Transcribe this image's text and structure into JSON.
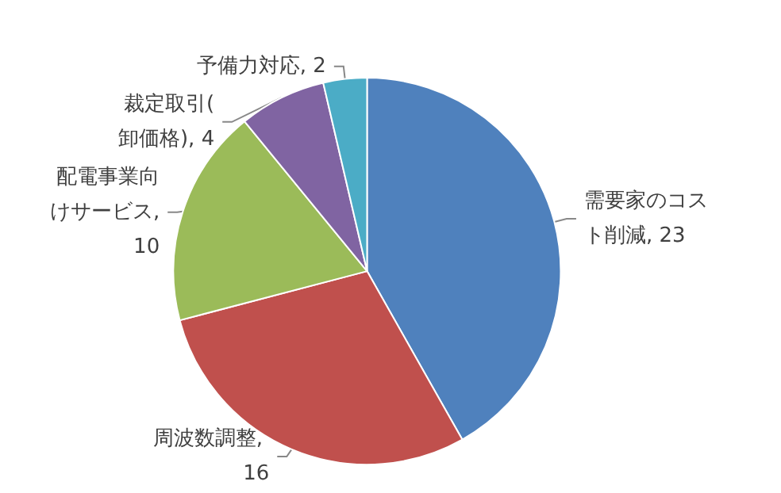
{
  "chart_data": {
    "type": "pie",
    "categories": [
      null,
      null,
      null,
      null,
      null
    ],
    "values": [
      23,
      16,
      10,
      4,
      2
    ],
    "value_labels": [
      "需要家のコスト削減, 23",
      "周波数調整, 16",
      "配電事業向けサービス, 10",
      "裁定取引(卸価格), 4",
      "予備力対応, 2"
    ],
    "colors": [
      "#4f81bd",
      "#c0504d",
      "#9bbb59",
      "#8064a2",
      "#4bacc6"
    ]
  }
}
